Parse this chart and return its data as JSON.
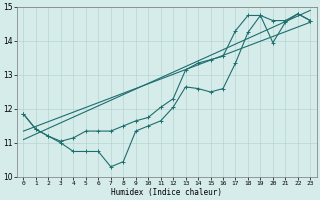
{
  "title": "",
  "xlabel": "Humidex (Indice chaleur)",
  "xlim": [
    -0.5,
    23.5
  ],
  "ylim": [
    10,
    15
  ],
  "yticks": [
    10,
    11,
    12,
    13,
    14,
    15
  ],
  "xticks": [
    0,
    1,
    2,
    3,
    4,
    5,
    6,
    7,
    8,
    9,
    10,
    11,
    12,
    13,
    14,
    15,
    16,
    17,
    18,
    19,
    20,
    21,
    22,
    23
  ],
  "bg_color": "#d5ecea",
  "grid_color": "#afd0cc",
  "line_color": "#1e6e6e",
  "line1_x": [
    0,
    1,
    2,
    3,
    4,
    5,
    6,
    7,
    8,
    9,
    10,
    11,
    12,
    13,
    14,
    15,
    16,
    17,
    18,
    19,
    20,
    21,
    22,
    23
  ],
  "line1_y": [
    11.85,
    11.4,
    11.2,
    11.0,
    10.75,
    10.75,
    10.75,
    10.3,
    10.45,
    11.35,
    11.5,
    11.65,
    12.05,
    12.65,
    12.6,
    12.5,
    12.6,
    13.35,
    14.25,
    14.75,
    13.95,
    14.55,
    14.8,
    14.6
  ],
  "line2_x": [
    0,
    1,
    2,
    3,
    4,
    5,
    6,
    7,
    8,
    9,
    10,
    11,
    12,
    13,
    14,
    15,
    16,
    17,
    18,
    19,
    20,
    21,
    22,
    23
  ],
  "line2_y": [
    11.85,
    11.4,
    11.2,
    11.05,
    11.15,
    11.35,
    11.35,
    11.35,
    11.5,
    11.65,
    11.75,
    12.05,
    12.3,
    13.15,
    13.35,
    13.45,
    13.55,
    14.3,
    14.75,
    14.75,
    14.6,
    14.6,
    14.8,
    14.6
  ],
  "reg_line1_x": [
    0,
    23
  ],
  "reg_line1_y": [
    11.35,
    14.55
  ],
  "reg_line2_x": [
    0,
    23
  ],
  "reg_line2_y": [
    11.1,
    14.9
  ]
}
